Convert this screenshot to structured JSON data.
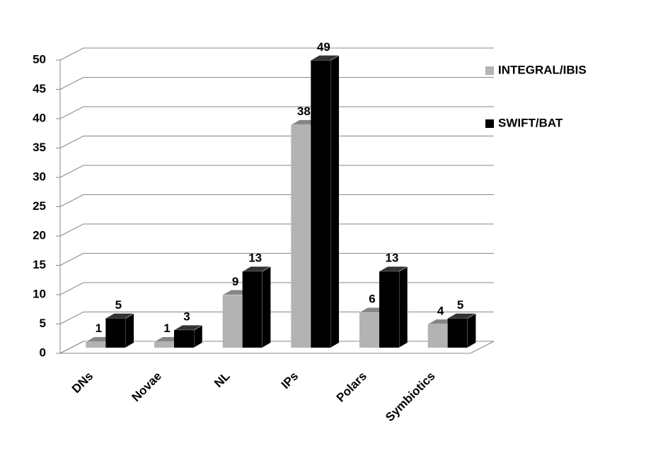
{
  "chart_data": {
    "type": "bar3d",
    "categories": [
      "DNs",
      "Novae",
      "NL",
      "IPs",
      "Polars",
      "Symbiotics"
    ],
    "series": [
      {
        "name": "INTEGRAL/IBIS",
        "color": "#b3b3b3",
        "values": [
          1,
          1,
          9,
          38,
          6,
          4
        ]
      },
      {
        "name": "SWIFT/BAT",
        "color": "#000000",
        "values": [
          5,
          3,
          13,
          49,
          13,
          5
        ]
      }
    ],
    "ylim": [
      0,
      50
    ],
    "yticks": [
      0,
      5,
      10,
      15,
      20,
      25,
      30,
      35,
      40,
      45,
      50
    ],
    "grid": true,
    "legend": "right"
  }
}
